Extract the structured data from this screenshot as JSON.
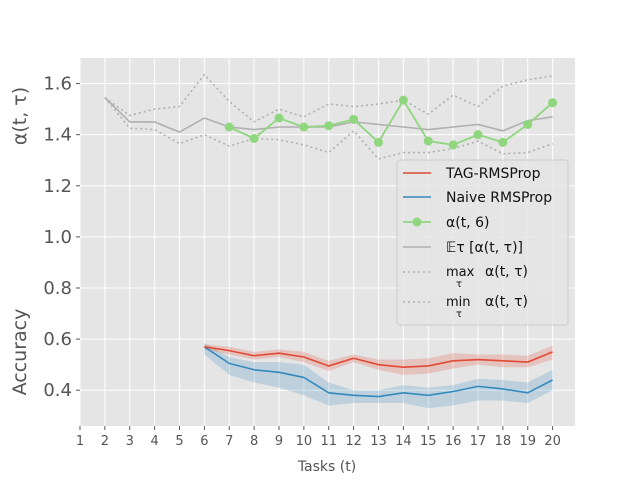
{
  "chart_data": {
    "type": "line",
    "xlabel": "Tasks (t)",
    "ylabel_top": "α(t, τ)",
    "ylabel_bottom": "Accuracy",
    "xlim": [
      1,
      20.9
    ],
    "ylim": [
      0.26,
      1.7
    ],
    "x_ticks": [
      1,
      2,
      3,
      4,
      5,
      6,
      7,
      8,
      9,
      10,
      11,
      12,
      13,
      14,
      15,
      16,
      17,
      18,
      19,
      20
    ],
    "y_ticks": [
      0.4,
      0.6,
      0.8,
      1.0,
      1.2,
      1.4,
      1.6
    ],
    "y_tick_labels": [
      "0.4",
      "0.6",
      "0.8",
      "1.0",
      "1.2",
      "1.4",
      "1.6"
    ],
    "grid": true,
    "legend_position": "right",
    "colors": {
      "tag": "#e24a33",
      "naive": "#348abd",
      "alpha6": "#8fd67f",
      "mean": "#b0b0b0",
      "extrema": "#b0b0b0",
      "background": "#e5e5e5"
    },
    "legend": [
      {
        "label": "TAG-RMSProp",
        "style": "tag"
      },
      {
        "label": "Naive RMSProp",
        "style": "naive"
      },
      {
        "label": "α(t, 6)",
        "style": "alpha6"
      },
      {
        "label": "𝔼τ  [α(t, τ)]",
        "style": "mean"
      },
      {
        "label": "max",
        "sub": "τ",
        "suffix": "α(t, τ)",
        "style": "max"
      },
      {
        "label": "min",
        "sub": "τ",
        "suffix": "α(t, τ)",
        "style": "min"
      }
    ],
    "series": [
      {
        "name": "TAG-RMSProp",
        "key": "tag",
        "x": [
          6,
          7,
          8,
          9,
          10,
          11,
          12,
          13,
          14,
          15,
          16,
          17,
          18,
          19,
          20
        ],
        "y": [
          0.57,
          0.555,
          0.535,
          0.545,
          0.53,
          0.495,
          0.525,
          0.5,
          0.49,
          0.495,
          0.515,
          0.52,
          0.515,
          0.51,
          0.55
        ],
        "band_low": [
          0.56,
          0.54,
          0.52,
          0.53,
          0.51,
          0.475,
          0.51,
          0.48,
          0.46,
          0.465,
          0.485,
          0.5,
          0.49,
          0.49,
          0.52
        ],
        "band_high": [
          0.58,
          0.57,
          0.55,
          0.56,
          0.55,
          0.515,
          0.54,
          0.52,
          0.52,
          0.525,
          0.545,
          0.54,
          0.54,
          0.535,
          0.575
        ]
      },
      {
        "name": "Naive RMSProp",
        "key": "naive",
        "x": [
          6,
          7,
          8,
          9,
          10,
          11,
          12,
          13,
          14,
          15,
          16,
          17,
          18,
          19,
          20
        ],
        "y": [
          0.57,
          0.505,
          0.48,
          0.47,
          0.45,
          0.39,
          0.38,
          0.375,
          0.39,
          0.38,
          0.395,
          0.415,
          0.405,
          0.39,
          0.44
        ],
        "band_low": [
          0.54,
          0.46,
          0.43,
          0.41,
          0.38,
          0.34,
          0.35,
          0.35,
          0.35,
          0.33,
          0.34,
          0.36,
          0.36,
          0.35,
          0.4
        ],
        "band_high": [
          0.585,
          0.53,
          0.51,
          0.51,
          0.5,
          0.43,
          0.4,
          0.4,
          0.42,
          0.41,
          0.42,
          0.445,
          0.44,
          0.43,
          0.48
        ]
      },
      {
        "name": "α(t, 6)",
        "key": "alpha6",
        "x": [
          7,
          8,
          9,
          10,
          11,
          12,
          13,
          14,
          15,
          16,
          17,
          18,
          19,
          20
        ],
        "y": [
          1.43,
          1.385,
          1.465,
          1.43,
          1.435,
          1.46,
          1.37,
          1.535,
          1.375,
          1.36,
          1.4,
          1.37,
          1.44,
          1.525
        ]
      },
      {
        "name": "𝔼τ [α(t, τ)]",
        "key": "mean",
        "x": [
          2,
          3,
          4,
          5,
          6,
          7,
          8,
          9,
          10,
          11,
          12,
          13,
          14,
          15,
          16,
          17,
          18,
          19,
          20
        ],
        "y": [
          1.545,
          1.45,
          1.45,
          1.41,
          1.465,
          1.43,
          1.42,
          1.43,
          1.43,
          1.43,
          1.45,
          1.44,
          1.43,
          1.42,
          1.43,
          1.44,
          1.415,
          1.455,
          1.47
        ]
      },
      {
        "name": "max τ α(t, τ)",
        "key": "max",
        "x": [
          2,
          3,
          4,
          5,
          6,
          7,
          8,
          9,
          10,
          11,
          12,
          13,
          14,
          15,
          16,
          17,
          18,
          19,
          20
        ],
        "y": [
          1.545,
          1.475,
          1.5,
          1.51,
          1.635,
          1.53,
          1.45,
          1.5,
          1.47,
          1.52,
          1.51,
          1.52,
          1.535,
          1.48,
          1.555,
          1.51,
          1.59,
          1.615,
          1.63
        ]
      },
      {
        "name": "min τ α(t, τ)",
        "key": "min",
        "x": [
          2,
          3,
          4,
          5,
          6,
          7,
          8,
          9,
          10,
          11,
          12,
          13,
          14,
          15,
          16,
          17,
          18,
          19,
          20
        ],
        "y": [
          1.545,
          1.425,
          1.42,
          1.365,
          1.4,
          1.355,
          1.385,
          1.38,
          1.36,
          1.33,
          1.415,
          1.305,
          1.33,
          1.33,
          1.345,
          1.375,
          1.325,
          1.33,
          1.365
        ]
      }
    ]
  }
}
